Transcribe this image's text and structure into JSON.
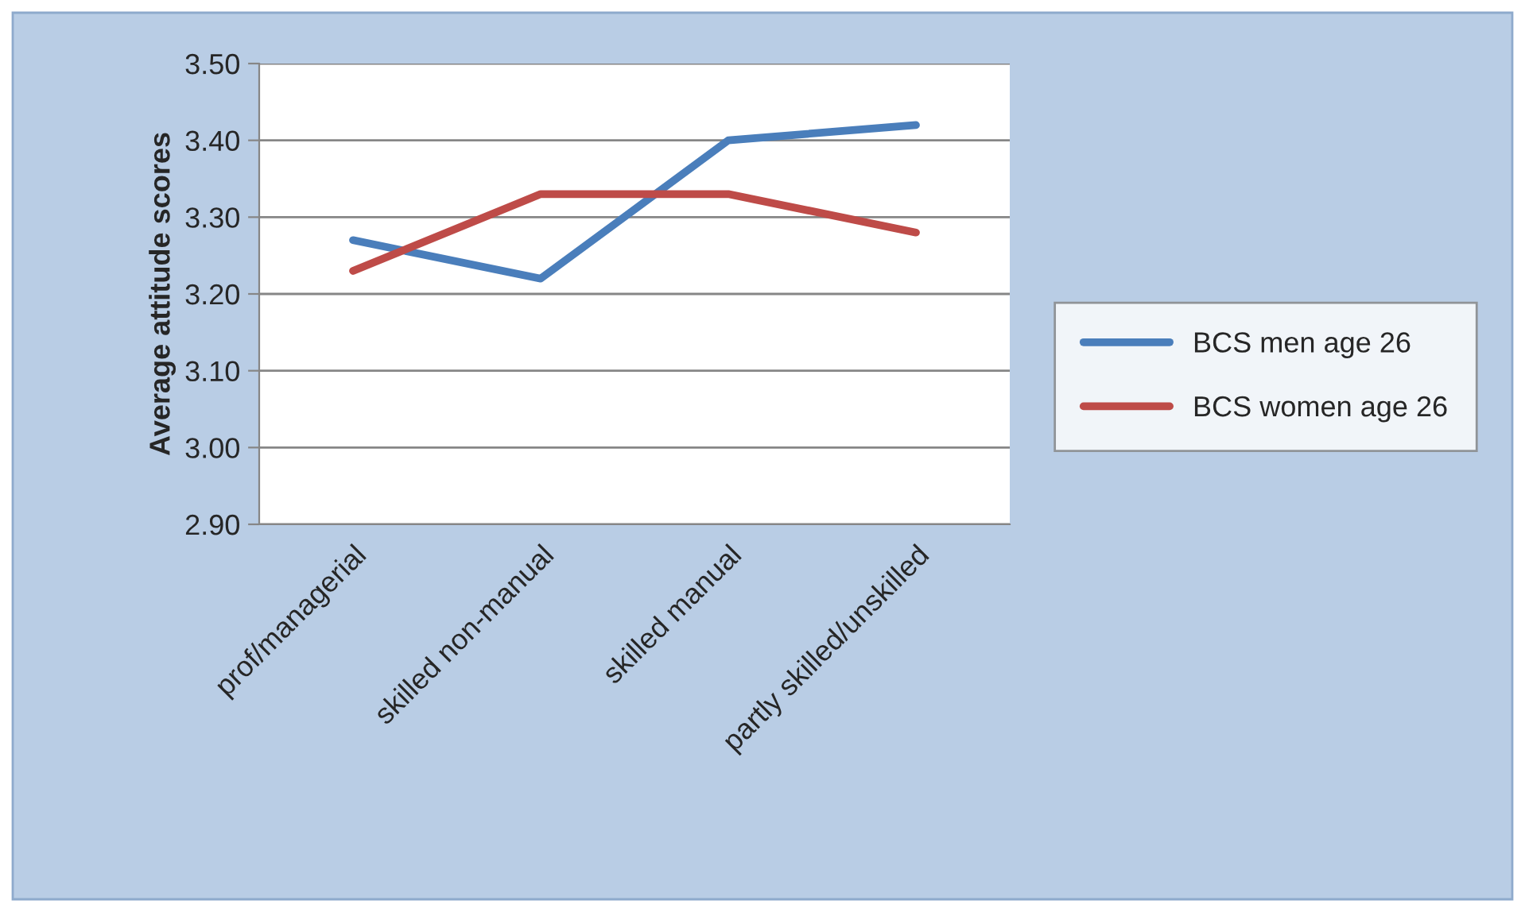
{
  "chart_data": {
    "type": "line",
    "ylabel": "Average attitude scores",
    "categories": [
      "prof/managerial",
      "skilled non-manual",
      "skilled manual",
      "partly skilled/unskilled"
    ],
    "series": [
      {
        "name": "BCS men age 26",
        "color": "#4a7ebb",
        "values": [
          3.27,
          3.22,
          3.4,
          3.42
        ]
      },
      {
        "name": "BCS women age 26",
        "color": "#be4b48",
        "values": [
          3.23,
          3.33,
          3.33,
          3.28
        ]
      }
    ],
    "ylim": [
      2.9,
      3.5
    ],
    "yticks": [
      {
        "value": 2.9,
        "label": "2.90"
      },
      {
        "value": 3.0,
        "label": "3.00"
      },
      {
        "value": 3.1,
        "label": "3.10"
      },
      {
        "value": 3.2,
        "label": "3.20"
      },
      {
        "value": 3.3,
        "label": "3.30"
      },
      {
        "value": 3.4,
        "label": "3.40"
      },
      {
        "value": 3.5,
        "label": "3.50"
      }
    ],
    "grid": "y",
    "legend": "right",
    "marker": "none",
    "line_style": "solid"
  }
}
